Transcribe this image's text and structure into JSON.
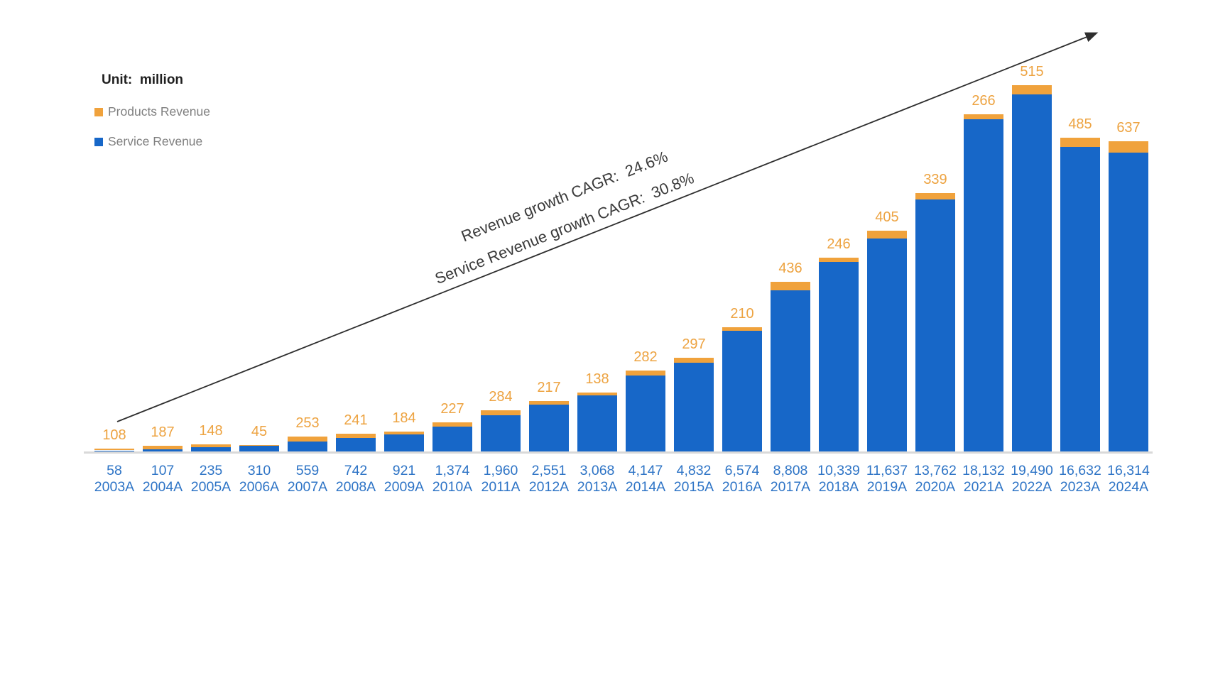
{
  "header": {
    "unit_label": "Unit:  million"
  },
  "legend": {
    "items": [
      {
        "label": "Products Revenue",
        "color": "#f0a23c"
      },
      {
        "label": "Service Revenue",
        "color": "#1767c8"
      }
    ]
  },
  "annotations": {
    "line1": "Revenue growth CAGR:  24.6%",
    "line2": "Service Revenue growth CAGR:  30.8%"
  },
  "colors": {
    "service_bar": "#1767c8",
    "products_bar": "#f0a23c",
    "service_value_text": "#2e74c6",
    "products_value_text": "#eda341",
    "axis_line": "#d9d9d9",
    "arrow": "#2e2e2e",
    "annotation_text": "#3a3a3a",
    "legend_text": "#7f7f7f"
  },
  "chart_data": {
    "type": "bar",
    "stacked": true,
    "unit": "million",
    "grid": false,
    "value_axis_visible": false,
    "legend_position": "top-left",
    "categories": [
      "2003A",
      "2004A",
      "2005A",
      "2006A",
      "2007A",
      "2008A",
      "2009A",
      "2010A",
      "2011A",
      "2012A",
      "2013A",
      "2014A",
      "2015A",
      "2016A",
      "2017A",
      "2018A",
      "2019A",
      "2020A",
      "2021A",
      "2022A",
      "2023A",
      "2024A"
    ],
    "series": [
      {
        "name": "Service Revenue",
        "color": "#1767c8",
        "values": [
          58,
          107,
          235,
          310,
          559,
          742,
          921,
          1374,
          1960,
          2551,
          3068,
          4147,
          4832,
          6574,
          8808,
          10339,
          11637,
          13762,
          18132,
          19490,
          16632,
          16314
        ],
        "labels": [
          "58",
          "107",
          "235",
          "310",
          "559",
          "742",
          "921",
          "1,374",
          "1,960",
          "2,551",
          "3,068",
          "4,147",
          "4,832",
          "6,574",
          "8,808",
          "10,339",
          "11,637",
          "13,762",
          "18,132",
          "19,490",
          "16,632",
          "16,314"
        ]
      },
      {
        "name": "Products Revenue",
        "color": "#f0a23c",
        "values": [
          108,
          187,
          148,
          45,
          253,
          241,
          184,
          227,
          284,
          217,
          138,
          282,
          297,
          210,
          436,
          246,
          405,
          339,
          266,
          515,
          485,
          637
        ],
        "labels": [
          "108",
          "187",
          "148",
          "45",
          "253",
          "241",
          "184",
          "227",
          "284",
          "217",
          "138",
          "282",
          "297",
          "210",
          "436",
          "246",
          "405",
          "339",
          "266",
          "515",
          "485",
          "637"
        ]
      }
    ],
    "annotations": [
      "Revenue growth CAGR:  24.6%",
      "Service Revenue growth CAGR:  30.8%"
    ]
  }
}
